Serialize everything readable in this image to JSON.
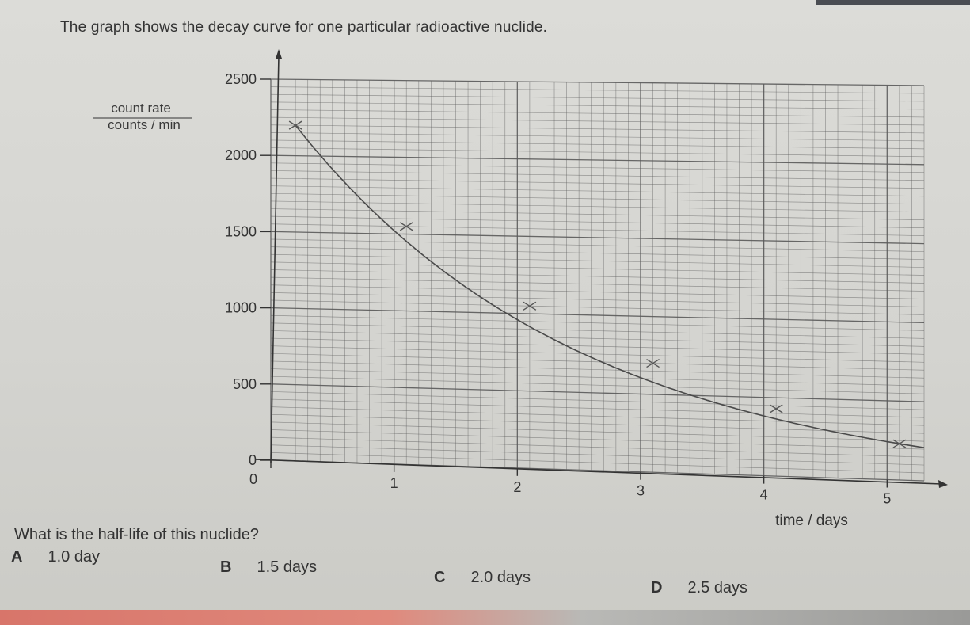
{
  "question": {
    "text": "The graph shows the decay curve for one particular radioactive nuclide.",
    "prompt": "What is the half-life of this nuclide?"
  },
  "options": [
    {
      "letter": "A",
      "text": "1.0 day"
    },
    {
      "letter": "B",
      "text": "1.5 days"
    },
    {
      "letter": "C",
      "text": "2.0 days"
    },
    {
      "letter": "D",
      "text": "2.5 days"
    }
  ],
  "chart_data": {
    "type": "line",
    "title": "",
    "ylabel_line1": "count rate",
    "ylabel_line2": "counts / min",
    "xlabel": "time / days",
    "xlim": [
      0,
      5.3
    ],
    "ylim": [
      0,
      2500
    ],
    "x_ticks": [
      0,
      1,
      2,
      3,
      4,
      5
    ],
    "y_ticks": [
      0,
      500,
      1000,
      1500,
      2000,
      2500
    ],
    "grid": true,
    "series": [
      {
        "name": "",
        "x": [
          0.2,
          1.1,
          2.1,
          3.1,
          4.1,
          5.1
        ],
        "y": [
          2200,
          1550,
          1050,
          700,
          430,
          230
        ],
        "markers": "x",
        "curve": "decay"
      }
    ]
  },
  "colors": {
    "grid": "#5a5a5a",
    "curve": "#4a4a4a",
    "text": "#333333"
  }
}
